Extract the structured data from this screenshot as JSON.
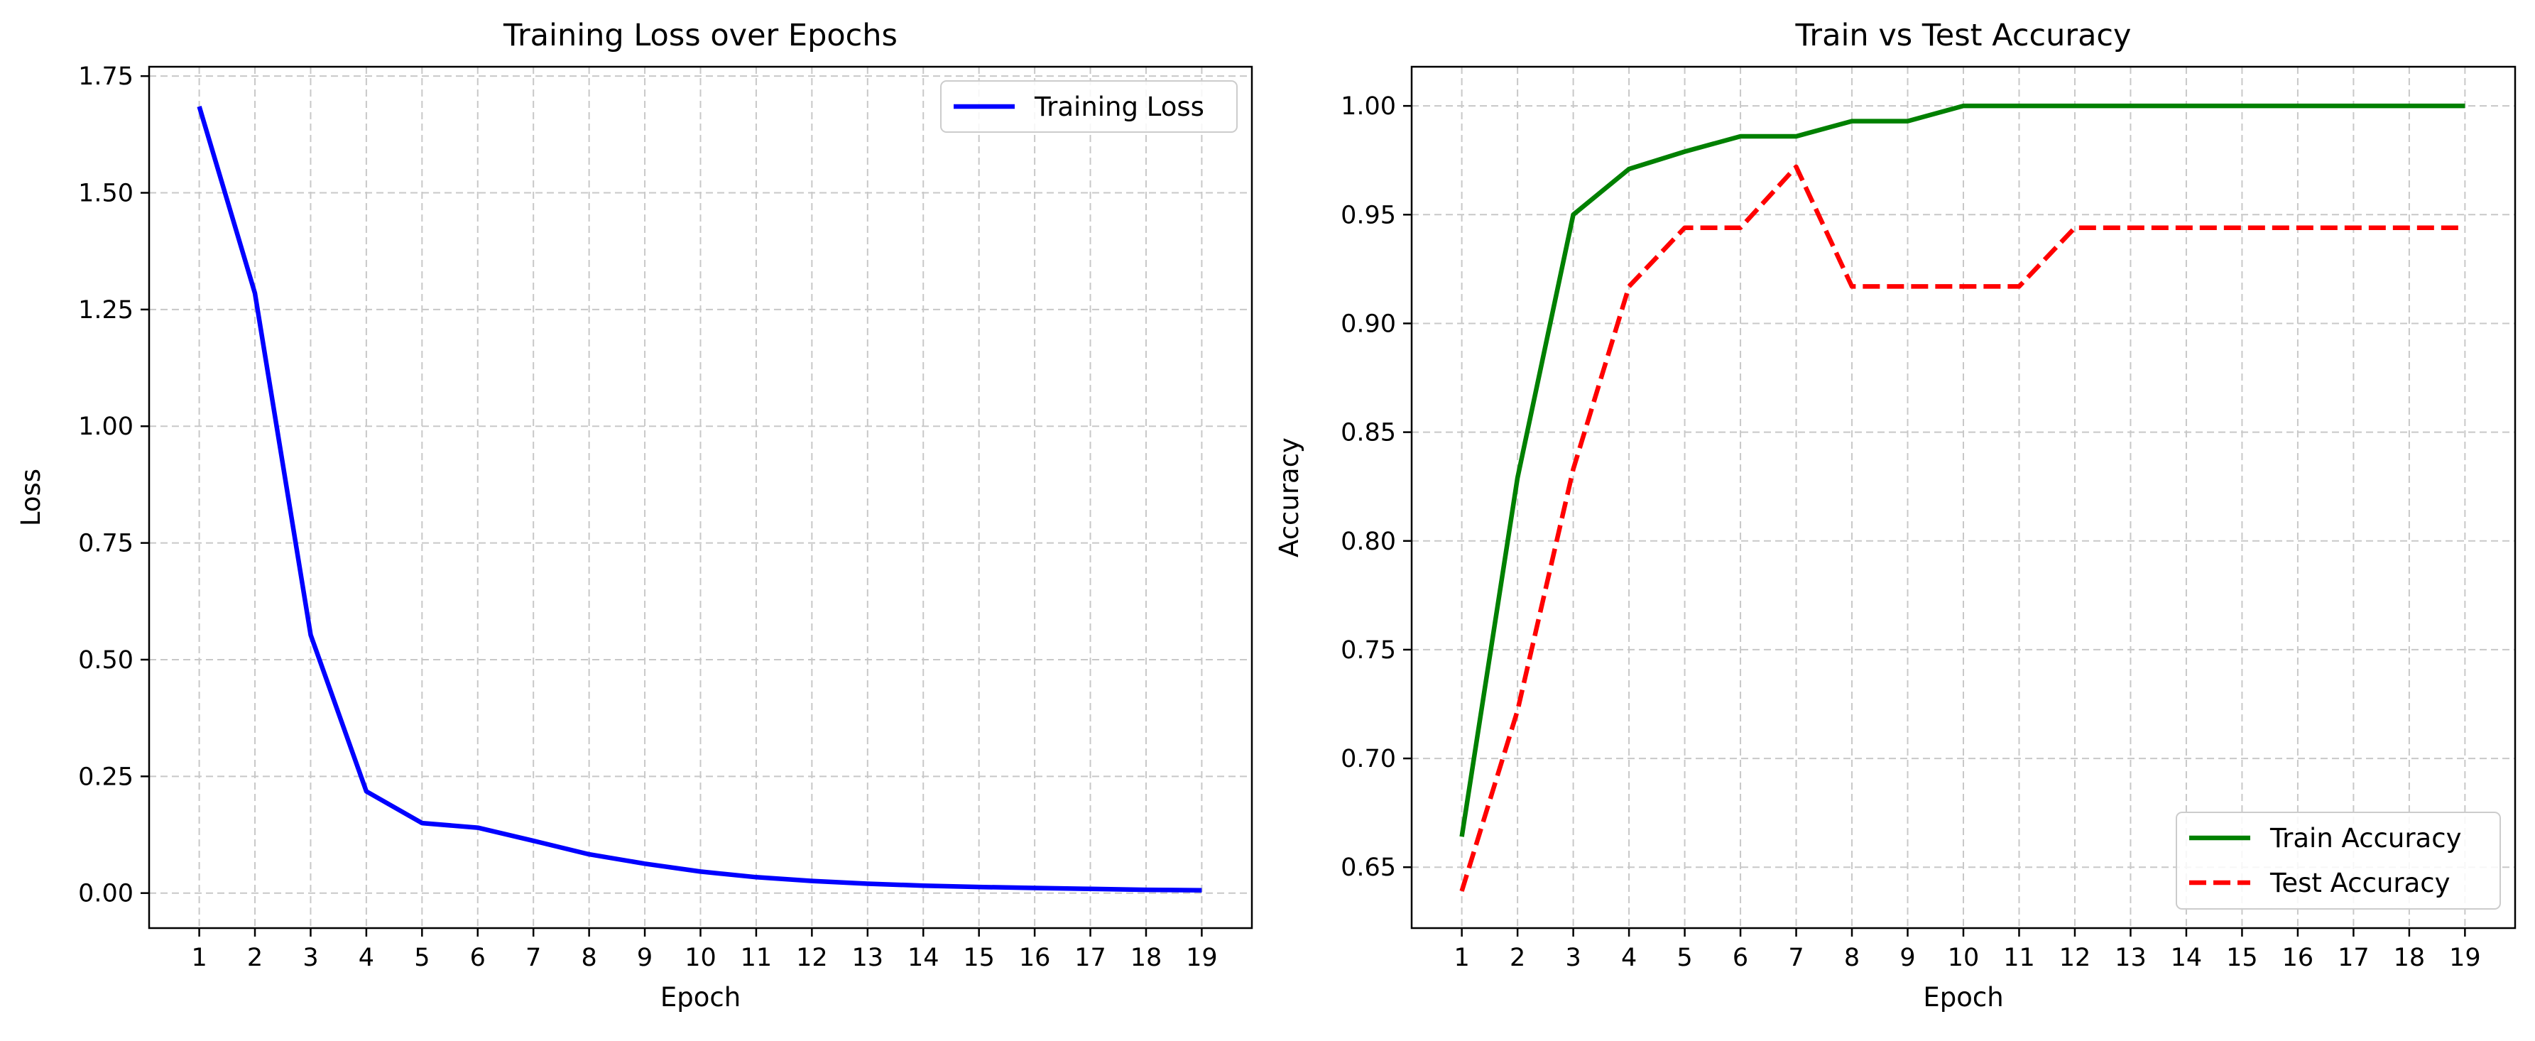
{
  "chart_data": [
    {
      "type": "line",
      "title": "Training Loss over Epochs",
      "xlabel": "Epoch",
      "ylabel": "Loss",
      "x": [
        1,
        2,
        3,
        4,
        5,
        6,
        7,
        8,
        9,
        10,
        11,
        12,
        13,
        14,
        15,
        16,
        17,
        18,
        19
      ],
      "xticks": [
        "1",
        "2",
        "3",
        "4",
        "5",
        "6",
        "7",
        "8",
        "9",
        "10",
        "11",
        "12",
        "13",
        "14",
        "15",
        "16",
        "17",
        "18",
        "19"
      ],
      "yticks": [
        0.0,
        0.25,
        0.5,
        0.75,
        1.0,
        1.25,
        1.5,
        1.75
      ],
      "ytick_labels": [
        "0.00",
        "0.25",
        "0.50",
        "0.75",
        "1.00",
        "1.25",
        "1.50",
        "1.75"
      ],
      "xlim": [
        0.1,
        19.9
      ],
      "ylim": [
        -0.075,
        1.77
      ],
      "grid": true,
      "legend_position": "upper-right",
      "series": [
        {
          "name": "Training Loss",
          "color": "#0000ff",
          "style": "solid",
          "values": [
            1.685,
            1.285,
            0.553,
            0.218,
            0.15,
            0.14,
            0.112,
            0.083,
            0.063,
            0.046,
            0.034,
            0.026,
            0.02,
            0.016,
            0.013,
            0.011,
            0.009,
            0.007,
            0.006
          ]
        }
      ]
    },
    {
      "type": "line",
      "title": "Train vs Test Accuracy",
      "xlabel": "Epoch",
      "ylabel": "Accuracy",
      "x": [
        1,
        2,
        3,
        4,
        5,
        6,
        7,
        8,
        9,
        10,
        11,
        12,
        13,
        14,
        15,
        16,
        17,
        18,
        19
      ],
      "xticks": [
        "1",
        "2",
        "3",
        "4",
        "5",
        "6",
        "7",
        "8",
        "9",
        "10",
        "11",
        "12",
        "13",
        "14",
        "15",
        "16",
        "17",
        "18",
        "19"
      ],
      "yticks": [
        0.65,
        0.7,
        0.75,
        0.8,
        0.85,
        0.9,
        0.95,
        1.0
      ],
      "ytick_labels": [
        "0.65",
        "0.70",
        "0.75",
        "0.80",
        "0.85",
        "0.90",
        "0.95",
        "1.00"
      ],
      "xlim": [
        0.1,
        19.9
      ],
      "ylim": [
        0.622,
        1.018
      ],
      "grid": true,
      "legend_position": "lower-right",
      "series": [
        {
          "name": "Train Accuracy",
          "color": "#008000",
          "style": "solid",
          "values": [
            0.664,
            0.829,
            0.95,
            0.971,
            0.979,
            0.986,
            0.986,
            0.993,
            0.993,
            1.0,
            1.0,
            1.0,
            1.0,
            1.0,
            1.0,
            1.0,
            1.0,
            1.0,
            1.0
          ]
        },
        {
          "name": "Test Accuracy",
          "color": "#ff0000",
          "style": "dashed",
          "values": [
            0.639,
            0.722,
            0.833,
            0.917,
            0.944,
            0.944,
            0.972,
            0.917,
            0.917,
            0.917,
            0.917,
            0.944,
            0.944,
            0.944,
            0.944,
            0.944,
            0.944,
            0.944,
            0.944
          ]
        }
      ]
    }
  ]
}
